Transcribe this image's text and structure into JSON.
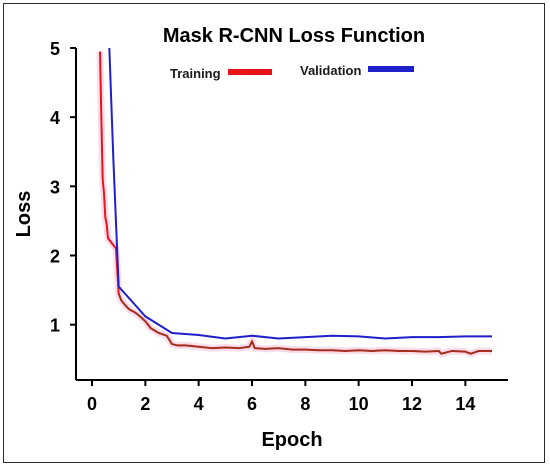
{
  "chart_data": {
    "type": "line",
    "title": "Mask R-CNN Loss Function",
    "xlabel": "Epoch",
    "ylabel": "Loss",
    "xlim": [
      -0.6,
      15.6
    ],
    "ylim": [
      0.2,
      5.0
    ],
    "xticks": [
      0,
      2,
      4,
      6,
      8,
      10,
      12,
      14
    ],
    "yticks": [
      1,
      2,
      3,
      4,
      5
    ],
    "grid": false,
    "legend_position": "top",
    "series": [
      {
        "name": "Training",
        "color": "#e8141c",
        "x": [
          0.3,
          0.35,
          0.4,
          0.45,
          0.5,
          0.55,
          0.6,
          0.7,
          0.8,
          0.9,
          1.0,
          1.1,
          1.25,
          1.4,
          1.6,
          1.8,
          2.0,
          2.2,
          2.5,
          2.8,
          3.0,
          3.2,
          3.5,
          4.0,
          4.5,
          5.0,
          5.5,
          5.9,
          6.0,
          6.1,
          6.5,
          7.0,
          7.5,
          8.0,
          8.5,
          9.0,
          9.5,
          10.0,
          10.5,
          11.0,
          11.5,
          12.0,
          12.5,
          13.0,
          13.1,
          13.5,
          14.0,
          14.2,
          14.5,
          15.0
        ],
        "values": [
          4.95,
          4.0,
          3.1,
          2.9,
          2.55,
          2.45,
          2.25,
          2.2,
          2.15,
          2.1,
          1.45,
          1.35,
          1.28,
          1.22,
          1.18,
          1.12,
          1.05,
          0.95,
          0.88,
          0.84,
          0.72,
          0.7,
          0.7,
          0.68,
          0.66,
          0.67,
          0.66,
          0.68,
          0.76,
          0.66,
          0.65,
          0.66,
          0.64,
          0.64,
          0.63,
          0.63,
          0.62,
          0.63,
          0.62,
          0.63,
          0.62,
          0.62,
          0.61,
          0.62,
          0.58,
          0.62,
          0.61,
          0.58,
          0.62,
          0.62
        ]
      },
      {
        "name": "Validation",
        "color": "#1f1fcc",
        "x": [
          0.65,
          0.8,
          1.0,
          2.0,
          3.0,
          4.0,
          5.0,
          6.0,
          7.0,
          8.0,
          9.0,
          10.0,
          11.0,
          12.0,
          13.0,
          14.0,
          15.0
        ],
        "values": [
          5.0,
          3.4,
          1.55,
          1.12,
          0.88,
          0.85,
          0.8,
          0.84,
          0.8,
          0.82,
          0.84,
          0.83,
          0.8,
          0.82,
          0.82,
          0.83,
          0.83
        ]
      }
    ]
  }
}
